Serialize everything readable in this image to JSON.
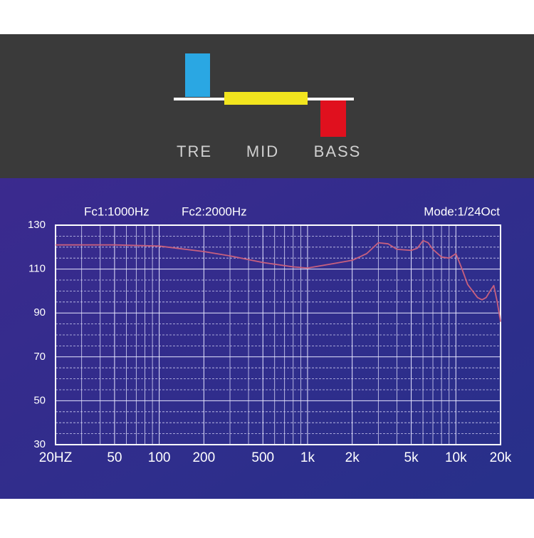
{
  "header": {
    "labels": [
      "TRE",
      "MID",
      "BASS"
    ]
  },
  "chart_data": {
    "type": "line",
    "annotations": [
      "Fc1:1000Hz",
      "Fc2:2000Hz",
      "Mode:1/24Oct"
    ],
    "x": [
      20,
      50,
      100,
      200,
      300,
      500,
      800,
      1000,
      1500,
      2000,
      2500,
      3000,
      3500,
      4000,
      5000,
      5500,
      6000,
      6500,
      7000,
      8000,
      9000,
      10000,
      11000,
      12000,
      14000,
      15000,
      16000,
      17000,
      18000,
      19000,
      20000
    ],
    "series": [
      {
        "color": "#c8607e",
        "values": [
          121,
          121,
          120.5,
          118,
          116,
          113,
          111,
          110.5,
          112.5,
          114,
          117,
          122,
          121.5,
          119,
          118.5,
          119.5,
          123,
          122,
          119,
          115.5,
          115,
          117,
          110,
          103,
          97,
          96,
          97,
          100,
          102.5,
          95,
          86
        ]
      }
    ],
    "xlog": true,
    "xlim": [
      20,
      20000
    ],
    "xticks": [
      {
        "value": 20,
        "label": "20HZ"
      },
      50,
      100,
      200,
      500,
      {
        "value": 1000,
        "label": "1k"
      },
      {
        "value": 2000,
        "label": "2k"
      },
      {
        "value": 5000,
        "label": "5k"
      },
      {
        "value": 10000,
        "label": "10k"
      },
      {
        "value": 20000,
        "label": "20k"
      }
    ],
    "xminor": [
      30,
      40,
      60,
      70,
      80,
      90,
      300,
      400,
      600,
      700,
      800,
      900,
      3000,
      4000,
      6000,
      7000,
      8000,
      9000
    ],
    "ylim": [
      30,
      130
    ],
    "yticks": [
      30,
      50,
      70,
      90,
      110,
      130
    ],
    "yminor": [
      35,
      40,
      45,
      55,
      60,
      65,
      75,
      80,
      85,
      95,
      100,
      105,
      115,
      120,
      125
    ],
    "grid": true
  }
}
